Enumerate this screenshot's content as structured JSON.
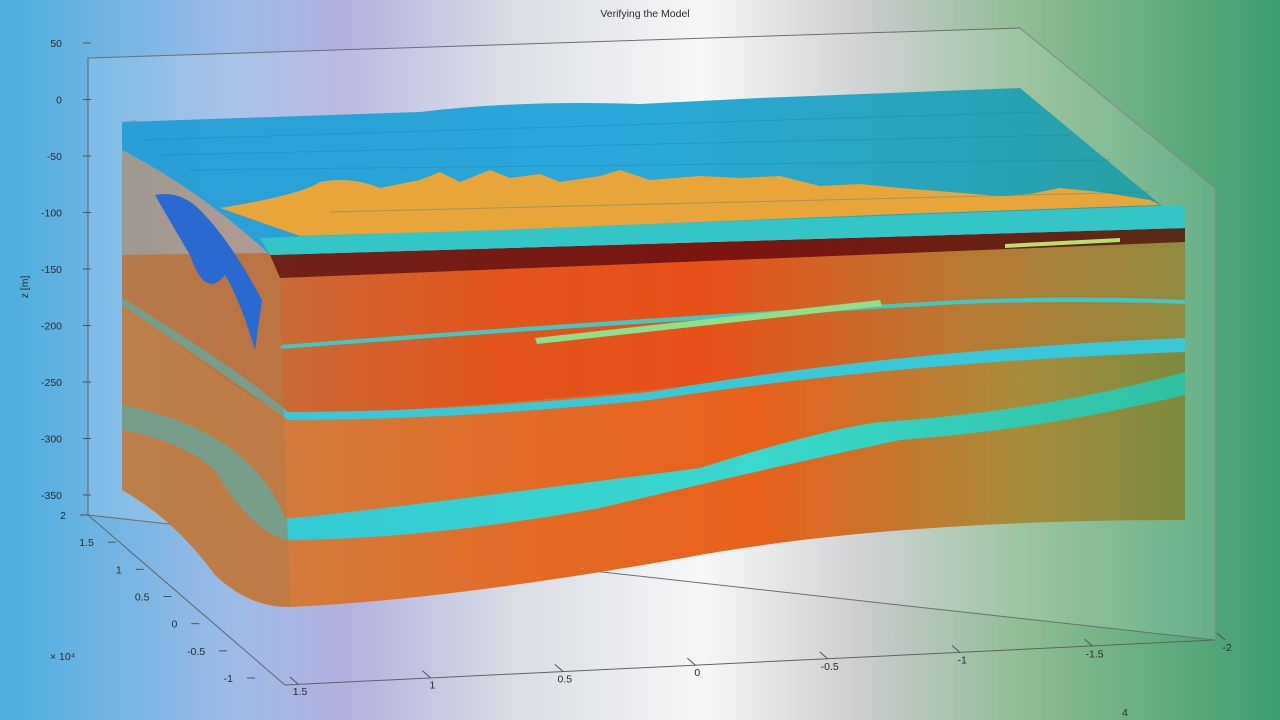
{
  "chart_data": {
    "type": "surface-3d",
    "title": "Verifying the Model",
    "zlabel": "z [m]",
    "y_exponent_label": "× 10⁴",
    "x_exponent_label": "4",
    "z_ticks": [
      "50",
      "0",
      "-50",
      "-100",
      "-150",
      "-200",
      "-250",
      "-300",
      "-350"
    ],
    "y_ticks": [
      "2",
      "1.5",
      "1",
      "0.5",
      "0",
      "-0.5",
      "-1"
    ],
    "x_ticks": [
      "1.5",
      "1",
      "0.5",
      "0",
      "-0.5",
      "-1",
      "-1.5",
      "-2"
    ],
    "grid": false,
    "layers": [
      {
        "name": "surface topography",
        "color": "#2fa6dc"
      },
      {
        "name": "intrusive body",
        "color": "#e8a53a"
      },
      {
        "name": "upper aquifer",
        "color": "#33cfc8"
      },
      {
        "name": "clay cap",
        "color": "#7a1a14"
      },
      {
        "name": "aquitard",
        "color": "#e05020"
      },
      {
        "name": "thin lens",
        "color": "#8ee08a"
      },
      {
        "name": "deep aquifer",
        "color": "#36d8cf"
      }
    ]
  },
  "colors": {
    "background_left": "#58b0e0",
    "background_mid": "#f4f6f6",
    "background_right": "#3aa06a"
  }
}
